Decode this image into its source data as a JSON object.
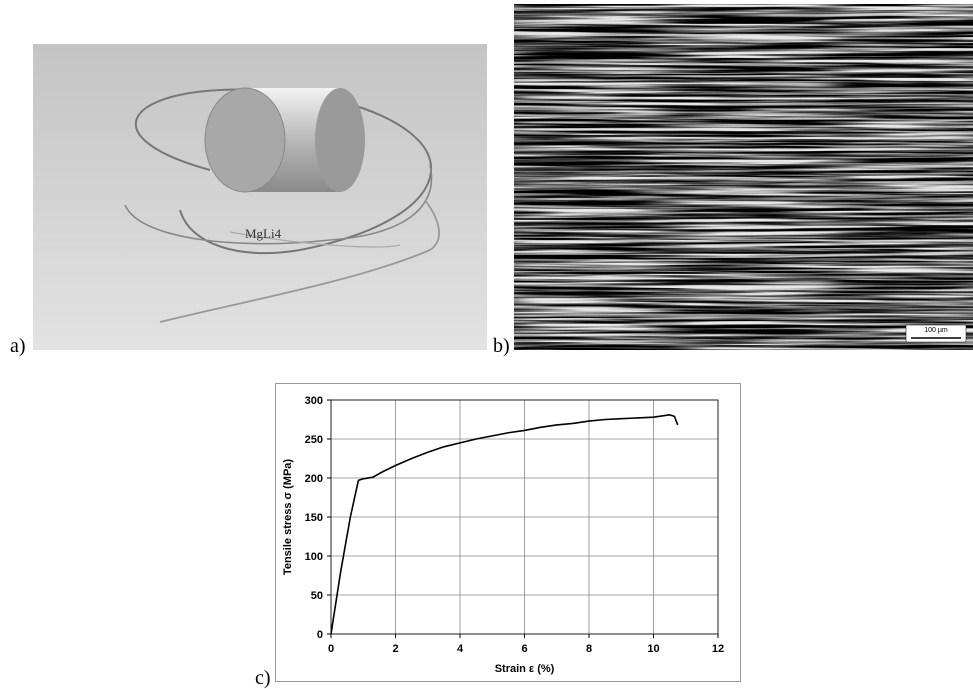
{
  "panels": [
    {
      "label": "a)",
      "photo_text": "MgLi4"
    },
    {
      "label": "b)",
      "scale_bar": "100 µm"
    },
    {
      "label": "c)"
    }
  ],
  "chart_data": {
    "type": "line",
    "x_label": "Strain ε (%)",
    "y_label": "Tensile stress σ (MPa)",
    "x": [
      0,
      0.3,
      0.6,
      0.85,
      1.0,
      1.3,
      1.6,
      2,
      2.5,
      3,
      3.5,
      4,
      4.5,
      5,
      5.5,
      6,
      6.5,
      7,
      7.5,
      8,
      8.5,
      9,
      9.5,
      10,
      10.5,
      10.65,
      10.75
    ],
    "series": [
      {
        "color": "#000000",
        "values": [
          0,
          80,
          150,
          197,
          199,
          201,
          208,
          216,
          225,
          233,
          240,
          245,
          250,
          254,
          258,
          261,
          265,
          268,
          270,
          273,
          275,
          276,
          277,
          278,
          281,
          279,
          268
        ]
      }
    ],
    "xlim": [
      0,
      12
    ],
    "xticks": [
      0,
      2,
      4,
      6,
      8,
      10,
      12
    ],
    "ylim": [
      0,
      300
    ],
    "yticks": [
      0,
      50,
      100,
      150,
      200,
      250,
      300
    ],
    "grid": true
  }
}
